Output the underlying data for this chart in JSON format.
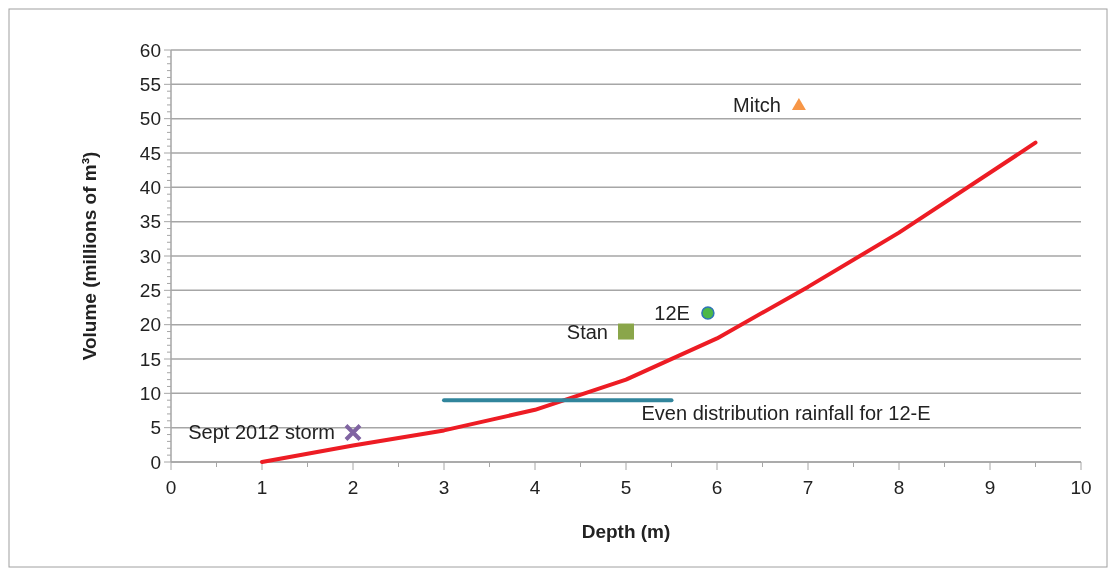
{
  "chart_data": {
    "type": "scatter",
    "xlabel": "Depth (m)",
    "ylabel": "Volume (millions of m³)",
    "xlim": [
      0,
      10
    ],
    "ylim": [
      0,
      60
    ],
    "xticks": [
      0,
      {
        "value": 0.5,
        "label": null
      },
      1,
      {
        "value": 1.5,
        "label": null
      },
      2,
      {
        "value": 2.5,
        "label": null
      },
      3,
      {
        "value": 3.5,
        "label": null
      },
      4,
      {
        "value": 4.5,
        "label": null
      },
      5,
      {
        "value": 5.5,
        "label": null
      },
      6,
      {
        "value": 6.5,
        "label": null
      },
      7,
      {
        "value": 7.5,
        "label": null
      },
      8,
      {
        "value": 8.5,
        "label": null
      },
      9,
      {
        "value": 9.5,
        "label": null
      },
      10
    ],
    "yticks": [
      0,
      {
        "value": 1,
        "label": null
      },
      {
        "value": 2,
        "label": null
      },
      {
        "value": 3,
        "label": null
      },
      {
        "value": 4,
        "label": null
      },
      5,
      {
        "value": 6,
        "label": null
      },
      {
        "value": 7,
        "label": null
      },
      {
        "value": 8,
        "label": null
      },
      {
        "value": 9,
        "label": null
      },
      10,
      {
        "value": 11,
        "label": null
      },
      {
        "value": 12,
        "label": null
      },
      {
        "value": 13,
        "label": null
      },
      {
        "value": 14,
        "label": null
      },
      15,
      {
        "value": 16,
        "label": null
      },
      {
        "value": 17,
        "label": null
      },
      {
        "value": 18,
        "label": null
      },
      {
        "value": 19,
        "label": null
      },
      20,
      {
        "value": 21,
        "label": null
      },
      {
        "value": 22,
        "label": null
      },
      {
        "value": 23,
        "label": null
      },
      {
        "value": 24,
        "label": null
      },
      25,
      {
        "value": 26,
        "label": null
      },
      {
        "value": 27,
        "label": null
      },
      {
        "value": 28,
        "label": null
      },
      {
        "value": 29,
        "label": null
      },
      30,
      {
        "value": 31,
        "label": null
      },
      {
        "value": 32,
        "label": null
      },
      {
        "value": 33,
        "label": null
      },
      {
        "value": 34,
        "label": null
      },
      35,
      {
        "value": 36,
        "label": null
      },
      {
        "value": 37,
        "label": null
      },
      {
        "value": 38,
        "label": null
      },
      {
        "value": 39,
        "label": null
      },
      40,
      {
        "value": 41,
        "label": null
      },
      {
        "value": 42,
        "label": null
      },
      {
        "value": 43,
        "label": null
      },
      {
        "value": 44,
        "label": null
      },
      45,
      {
        "value": 46,
        "label": null
      },
      {
        "value": 47,
        "label": null
      },
      {
        "value": 48,
        "label": null
      },
      {
        "value": 49,
        "label": null
      },
      50,
      {
        "value": 51,
        "label": null
      },
      {
        "value": 52,
        "label": null
      },
      {
        "value": 53,
        "label": null
      },
      {
        "value": 54,
        "label": null
      },
      55,
      {
        "value": 56,
        "label": null
      },
      {
        "value": 57,
        "label": null
      },
      {
        "value": 58,
        "label": null
      },
      {
        "value": 59,
        "label": null
      },
      60
    ],
    "grid": "y",
    "series": [
      {
        "type": "line",
        "color": "#ed1c24",
        "line_style": "solid",
        "marker": "none",
        "x": [
          1,
          2,
          3,
          4,
          5,
          6,
          7,
          8,
          9.5
        ],
        "values": [
          0,
          2.4,
          4.6,
          7.6,
          12,
          18,
          25.5,
          33.4,
          46.5
        ]
      },
      {
        "type": "line",
        "name": "Even distribution rainfall for 12-E",
        "color": "#31859c",
        "line_style": "solid",
        "marker": "none",
        "x": [
          3,
          5.5
        ],
        "values": [
          9,
          9
        ]
      },
      {
        "name": "Sept 2012 storm",
        "color": "#8064a2",
        "marker": "cross",
        "x": [
          2
        ],
        "values": [
          4.3
        ]
      },
      {
        "name": "Stan",
        "color": "#8aa64a",
        "marker": "square",
        "x": [
          5
        ],
        "values": [
          19
        ]
      },
      {
        "name": "12E",
        "color": "#4cb848",
        "marker": "circle",
        "x": [
          5.9
        ],
        "values": [
          21.7
        ]
      },
      {
        "name": "Mitch",
        "color": "#f79646",
        "marker": "triangle",
        "x": [
          6.9
        ],
        "values": [
          52
        ]
      }
    ]
  }
}
